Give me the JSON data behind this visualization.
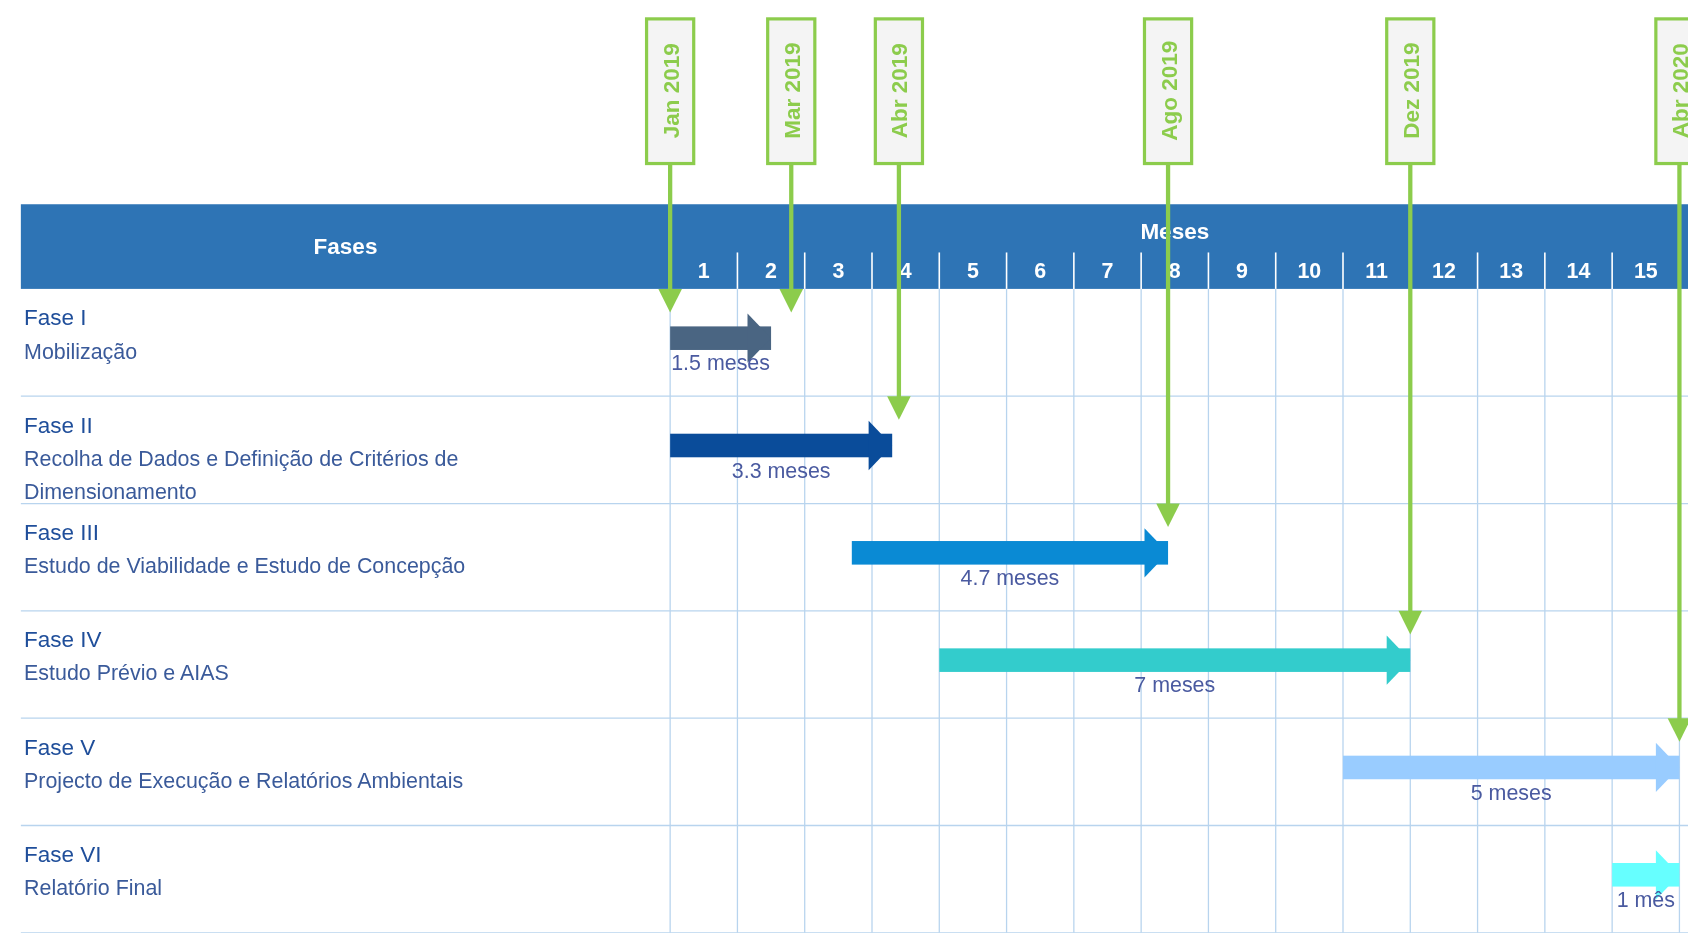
{
  "chart_data": {
    "type": "bar",
    "orientation": "horizontal",
    "xlabel": "Meses",
    "ylabel": "Fases",
    "categories": [
      "Fase I\nMobilização",
      "Fase II\nRecolha de Dados e Definição de Critérios de\nDimensionamento",
      "Fase III\nEstudo de Viabilidade e Estudo de Concepção",
      "Fase IV\nEstudo Prévio e AIAS",
      "Fase V\nProjecto de Execução e Relatórios Ambientais",
      "Fase VI\nRelatório Final"
    ],
    "base": [
      0,
      0,
      2.7,
      4,
      10,
      14
    ],
    "values": [
      1.5,
      3.3,
      4.7,
      7,
      5,
      1
    ],
    "colors": [
      "#4a6582",
      "#0a4c9a",
      "#0a8ad4",
      "#33cccc",
      "#99ccff",
      "#66ffff"
    ],
    "value_labels": [
      "1.5 meses",
      "3.3 meses",
      "4.7 meses",
      "7 meses",
      "5 meses",
      "1 mês"
    ],
    "xlim": [
      0,
      15
    ],
    "xticks": [
      {
        "value": 0,
        "label": null
      },
      {
        "value": 1,
        "label": null
      },
      {
        "value": 2,
        "label": null
      },
      {
        "value": 3,
        "label": null
      },
      {
        "value": 4,
        "label": null
      },
      {
        "value": 5,
        "label": null
      },
      {
        "value": 6,
        "label": null
      },
      {
        "value": 7,
        "label": null
      },
      {
        "value": 8,
        "label": null
      },
      {
        "value": 9,
        "label": null
      },
      {
        "value": 10,
        "label": null
      },
      {
        "value": 11,
        "label": null
      },
      {
        "value": 12,
        "label": null
      },
      {
        "value": 13,
        "label": null
      },
      {
        "value": 14,
        "label": null
      },
      {
        "value": 15,
        "label": null
      },
      {
        "value": 0.5,
        "label": "1"
      },
      {
        "value": 1.5,
        "label": "2"
      },
      {
        "value": 2.5,
        "label": "3"
      },
      {
        "value": 3.5,
        "label": "4"
      },
      {
        "value": 4.5,
        "label": "5"
      },
      {
        "value": 5.5,
        "label": "6"
      },
      {
        "value": 6.5,
        "label": "7"
      },
      {
        "value": 7.5,
        "label": "8"
      },
      {
        "value": 8.5,
        "label": "9"
      },
      {
        "value": 9.5,
        "label": "10"
      },
      {
        "value": 10.5,
        "label": "11"
      },
      {
        "value": 11.5,
        "label": "12"
      },
      {
        "value": 12.5,
        "label": "13"
      },
      {
        "value": 13.5,
        "label": "14"
      },
      {
        "value": 14.5,
        "label": "15"
      }
    ],
    "ref_lines": [
      {
        "axis": "x",
        "value": 0,
        "label": "Jan 2019",
        "color": "#8ccc4c"
      },
      {
        "axis": "x",
        "value": 1.8,
        "label": "Mar 2019",
        "color": "#8ccc4c"
      },
      {
        "axis": "x",
        "value": 3.4,
        "label": "Abr 2019",
        "color": "#8ccc4c"
      },
      {
        "axis": "x",
        "value": 7.4,
        "label": "Ago 2019",
        "color": "#8ccc4c"
      },
      {
        "axis": "x",
        "value": 11,
        "label": "Dez 2019",
        "color": "#8ccc4c"
      },
      {
        "axis": "x",
        "value": 15,
        "label": "Abr 2020",
        "color": "#8ccc4c"
      }
    ],
    "grid": true
  }
}
